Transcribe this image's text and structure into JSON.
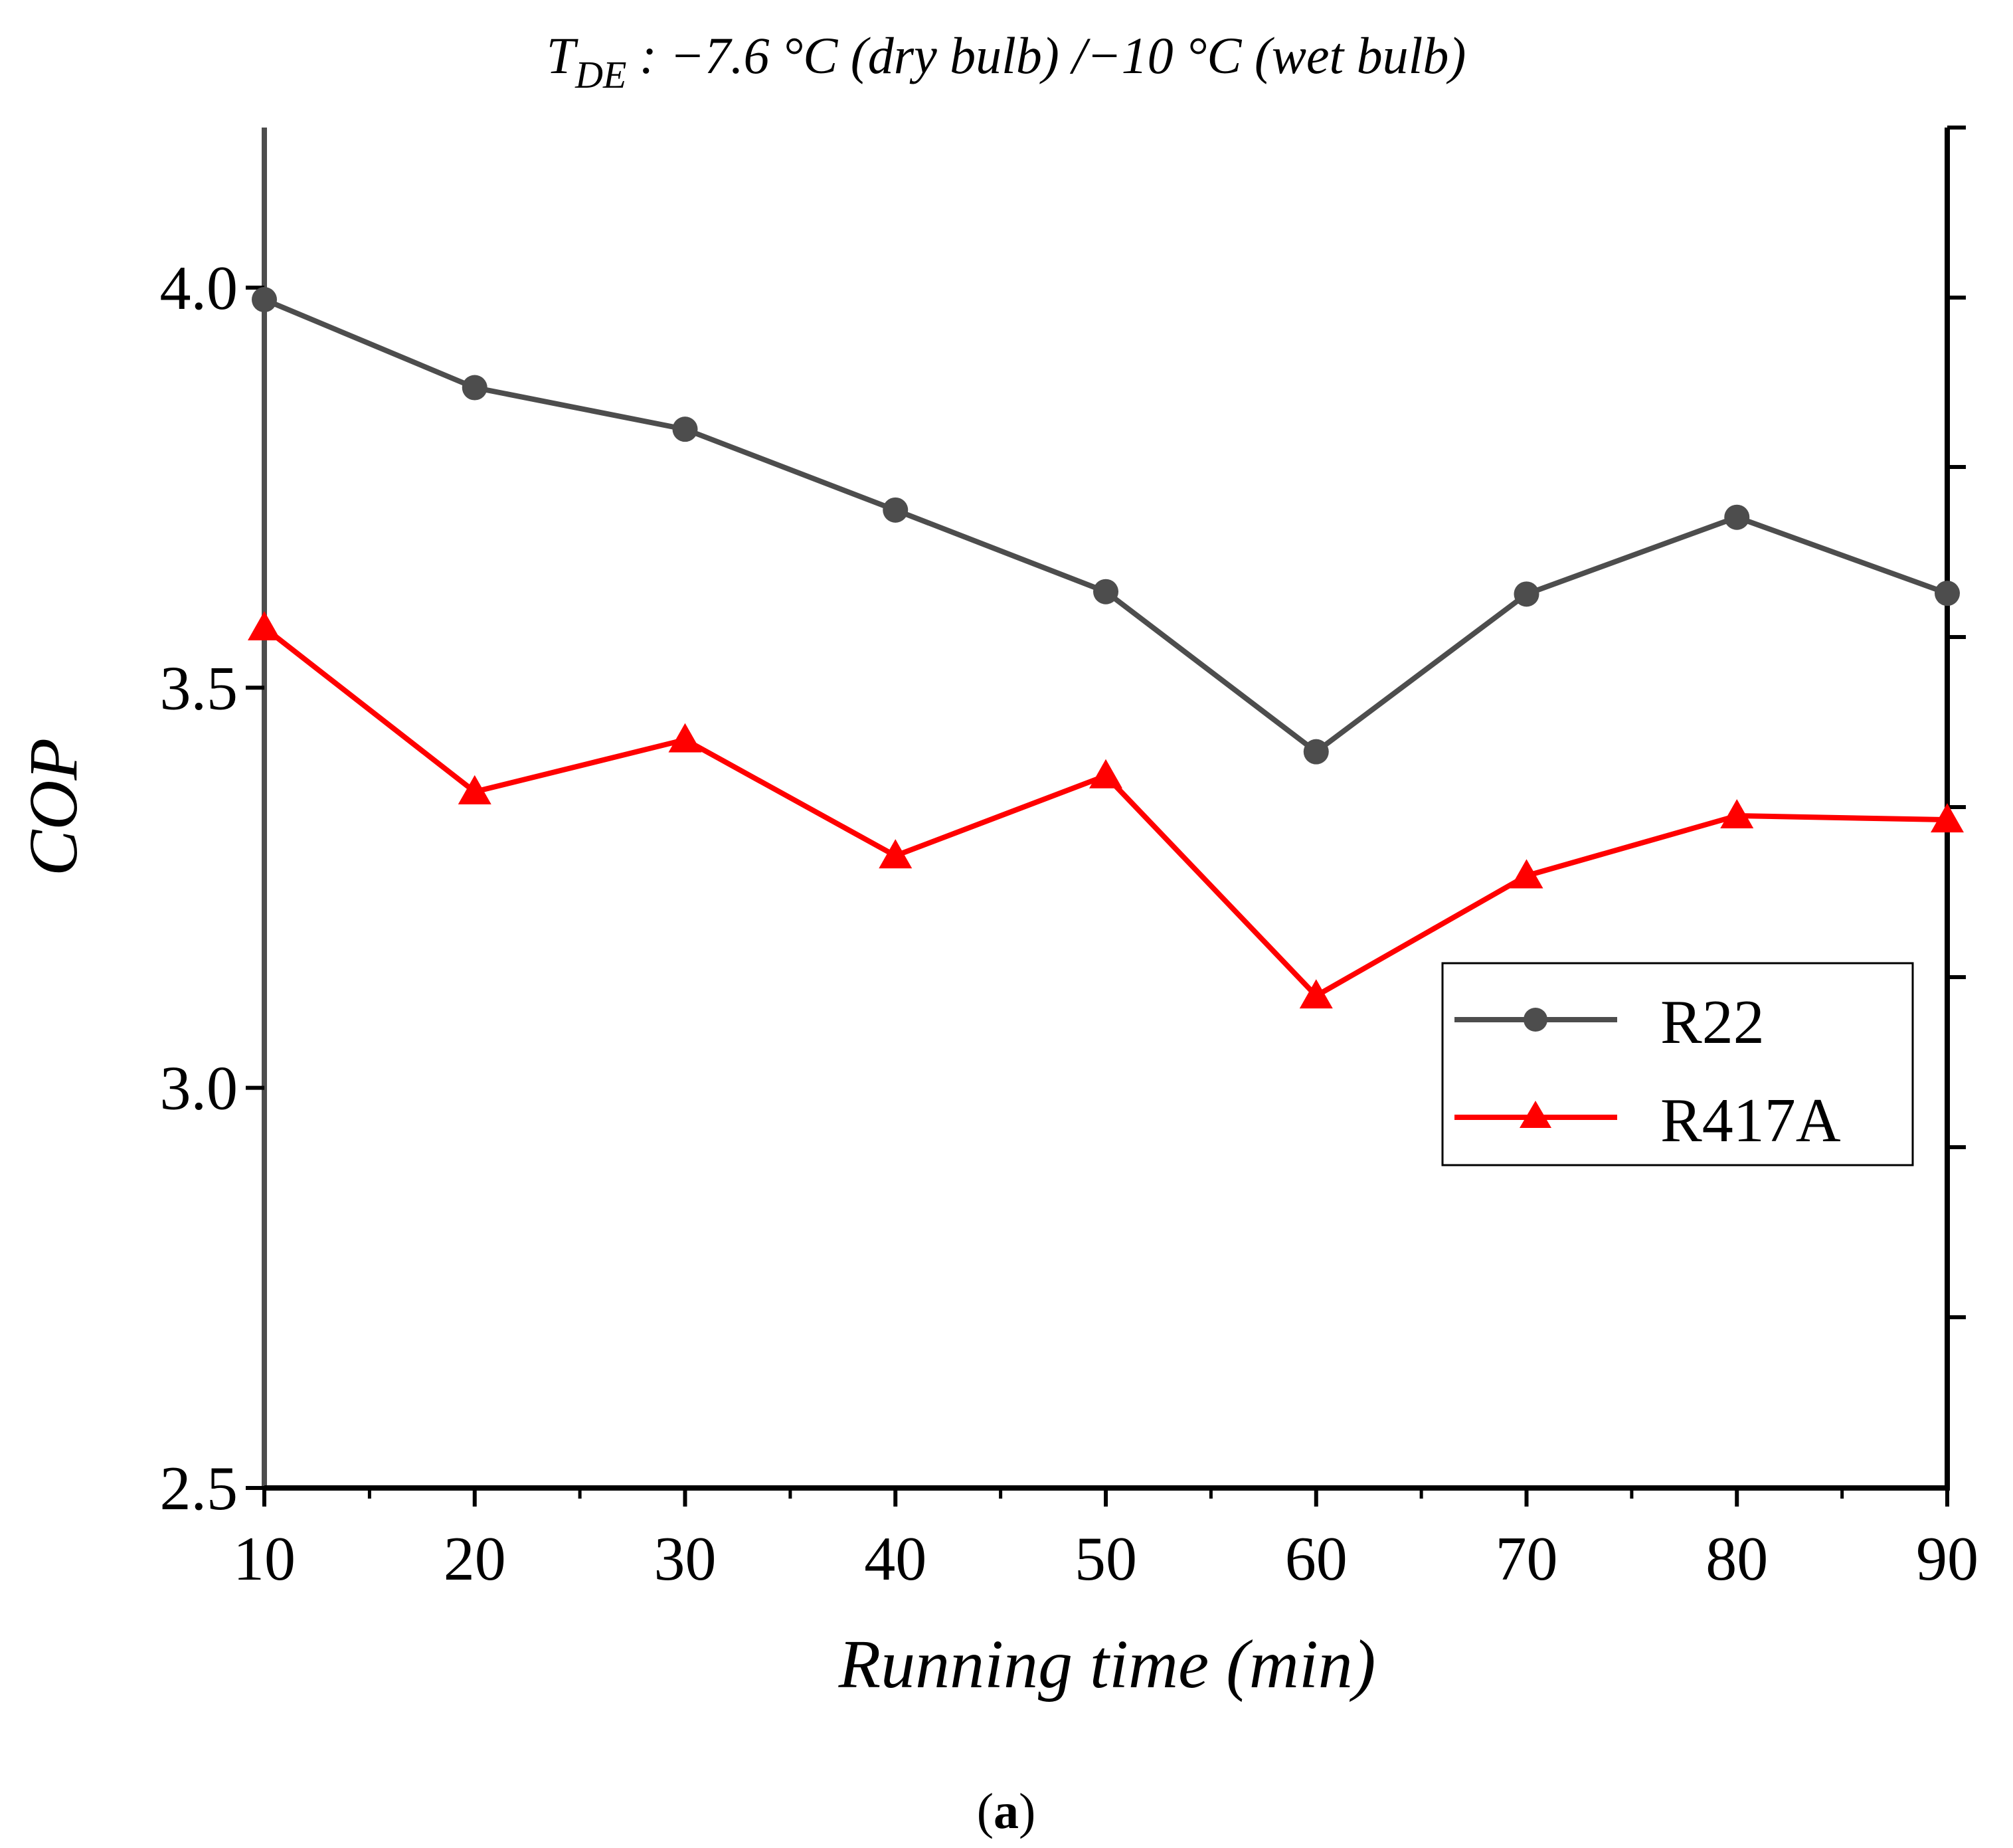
{
  "chart_data": {
    "type": "line",
    "title": "T",
    "title_sub": "DE",
    "title_rest": " : −7.6 °C (dry bulb) /−10 °C (wet bulb)",
    "xlabel": "Running time (min)",
    "ylabel": "COP",
    "xlim": [
      10,
      90
    ],
    "ylim": [
      2.5,
      4.2
    ],
    "x_ticks": [
      10,
      20,
      30,
      40,
      50,
      60,
      70,
      80,
      90
    ],
    "x_tick_labels": [
      "10",
      "20",
      "30",
      "40",
      "50",
      "60",
      "70",
      "80",
      "90"
    ],
    "y_ticks": [
      2.5,
      3.0,
      3.5,
      4.0
    ],
    "y_tick_labels": [
      "2.5",
      "3.0",
      "3.5",
      "4.0"
    ],
    "legend_position": "right",
    "x": [
      10,
      20,
      30,
      40,
      50,
      60,
      70,
      80,
      90
    ],
    "series": [
      {
        "name": "R22",
        "color": "#4d4d4d",
        "marker": "circle",
        "values": [
          3.985,
          3.875,
          3.823,
          3.722,
          3.62,
          3.42,
          3.617,
          3.713,
          3.618
        ]
      },
      {
        "name": "R417A",
        "color": "#ff0000",
        "marker": "triangle",
        "values": [
          3.575,
          3.37,
          3.435,
          3.29,
          3.39,
          3.115,
          3.265,
          3.34,
          3.335
        ]
      }
    ]
  },
  "caption": {
    "open": "(",
    "label": "a",
    "close": ")"
  }
}
